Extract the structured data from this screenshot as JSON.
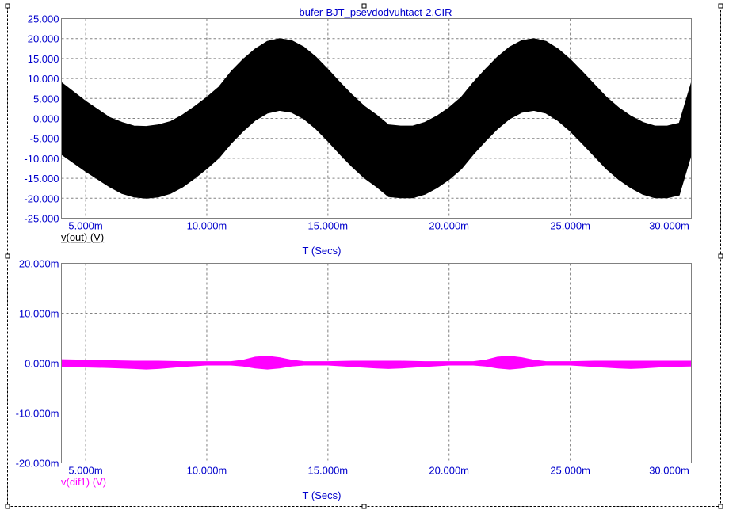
{
  "title": "bufer-BJT_psevdodvuhtact-2.CIR",
  "chart_data": [
    {
      "type": "area",
      "xlabel": "T (Secs)",
      "xlim": [
        0.004,
        0.03
      ],
      "ylim": [
        -25,
        25
      ],
      "x_ticks": [
        "5.000m",
        "10.000m",
        "15.000m",
        "20.000m",
        "25.000m",
        "30.000m"
      ],
      "x_tick_values": [
        0.005,
        0.01,
        0.015,
        0.02,
        0.025,
        0.03
      ],
      "y_ticks": [
        "25.000",
        "20.000",
        "15.000",
        "10.000",
        "5.000",
        "0.000",
        "-5.000",
        "-10.000",
        "-15.000",
        "-20.000",
        "-25.000"
      ],
      "y_tick_values": [
        25,
        20,
        15,
        10,
        5,
        0,
        -5,
        -10,
        -15,
        -20,
        -25
      ],
      "grid": true,
      "series": [
        {
          "name": "v(out) (V)",
          "color": "#000000",
          "x": [
            0.004,
            0.005,
            0.006,
            0.0065,
            0.007,
            0.0075,
            0.008,
            0.0085,
            0.009,
            0.0095,
            0.01,
            0.0105,
            0.011,
            0.0115,
            0.012,
            0.0125,
            0.013,
            0.0135,
            0.014,
            0.0145,
            0.015,
            0.0155,
            0.016,
            0.0165,
            0.017,
            0.0175,
            0.018,
            0.0185,
            0.019,
            0.0195,
            0.02,
            0.0205,
            0.021,
            0.0215,
            0.022,
            0.0225,
            0.023,
            0.0235,
            0.024,
            0.0245,
            0.025,
            0.0255,
            0.026,
            0.0265,
            0.027,
            0.0275,
            0.028,
            0.0285,
            0.029,
            0.0295,
            0.03
          ],
          "upper": [
            9.0,
            4.3,
            0.2,
            -1.0,
            -1.9,
            -2.0,
            -1.6,
            -0.8,
            0.9,
            3.0,
            5.3,
            7.9,
            11.7,
            14.8,
            17.4,
            19.3,
            20.0,
            19.5,
            17.9,
            15.4,
            12.3,
            9.0,
            5.9,
            3.1,
            0.9,
            -1.6,
            -1.9,
            -1.9,
            -1.0,
            0.6,
            2.7,
            5.3,
            9.0,
            12.3,
            15.4,
            17.9,
            19.5,
            20.0,
            19.3,
            17.4,
            14.8,
            11.7,
            8.5,
            5.3,
            2.7,
            0.6,
            -1.0,
            -1.9,
            -1.9,
            -1.2,
            9.0
          ],
          "lower": [
            -9.0,
            -13.3,
            -17.2,
            -18.8,
            -19.7,
            -20.0,
            -19.7,
            -18.8,
            -17.2,
            -15.0,
            -12.6,
            -9.9,
            -6.3,
            -3.2,
            -0.5,
            1.3,
            2.0,
            1.5,
            -0.1,
            -2.6,
            -5.7,
            -9.0,
            -12.1,
            -14.9,
            -17.1,
            -19.6,
            -19.9,
            -19.9,
            -19.0,
            -17.4,
            -15.3,
            -12.7,
            -9.0,
            -5.7,
            -2.6,
            -0.1,
            1.5,
            2.0,
            1.3,
            -0.6,
            -3.2,
            -6.3,
            -9.5,
            -12.7,
            -15.3,
            -17.4,
            -19.0,
            -19.9,
            -19.9,
            -19.2,
            -9.0
          ]
        }
      ]
    },
    {
      "type": "area",
      "xlabel": "T (Secs)",
      "xlim": [
        0.004,
        0.03
      ],
      "ylim": [
        -0.02,
        0.02
      ],
      "x_ticks": [
        "5.000m",
        "10.000m",
        "15.000m",
        "20.000m",
        "25.000m",
        "30.000m"
      ],
      "x_tick_values": [
        0.005,
        0.01,
        0.015,
        0.02,
        0.025,
        0.03
      ],
      "y_ticks": [
        "20.000m",
        "10.000m",
        "0.000m",
        "-10.000m",
        "-20.000m"
      ],
      "y_tick_values": [
        0.02,
        0.01,
        0,
        -0.01,
        -0.02
      ],
      "grid": true,
      "series": [
        {
          "name": "v(dif1) (V)",
          "color": "#ff00ff",
          "x": [
            0.004,
            0.005,
            0.006,
            0.007,
            0.0075,
            0.008,
            0.009,
            0.01,
            0.011,
            0.0115,
            0.012,
            0.0125,
            0.013,
            0.0135,
            0.014,
            0.015,
            0.016,
            0.017,
            0.0175,
            0.018,
            0.019,
            0.02,
            0.021,
            0.0215,
            0.022,
            0.0225,
            0.023,
            0.0235,
            0.024,
            0.025,
            0.026,
            0.027,
            0.0275,
            0.028,
            0.029,
            0.03
          ],
          "upper": [
            0.0007,
            0.0006,
            0.0005,
            0.0004,
            0.0004,
            0.0004,
            0.0003,
            0.0003,
            0.0003,
            0.0006,
            0.0012,
            0.0014,
            0.0011,
            0.0006,
            0.0003,
            0.0003,
            0.0004,
            0.0004,
            0.0004,
            0.0004,
            0.0003,
            0.0003,
            0.0003,
            0.0006,
            0.0012,
            0.0014,
            0.0011,
            0.0006,
            0.0003,
            0.0003,
            0.0004,
            0.0004,
            0.0004,
            0.0004,
            0.0004,
            0.0004
          ],
          "lower": [
            -0.0007,
            -0.0008,
            -0.0009,
            -0.0011,
            -0.0012,
            -0.0011,
            -0.0007,
            -0.0004,
            -0.0004,
            -0.0006,
            -0.001,
            -0.0012,
            -0.001,
            -0.0006,
            -0.0004,
            -0.0004,
            -0.0007,
            -0.001,
            -0.0011,
            -0.001,
            -0.0007,
            -0.0004,
            -0.0004,
            -0.0006,
            -0.001,
            -0.0012,
            -0.001,
            -0.0006,
            -0.0004,
            -0.0004,
            -0.0007,
            -0.001,
            -0.0011,
            -0.001,
            -0.0007,
            -0.0006
          ]
        }
      ]
    }
  ]
}
